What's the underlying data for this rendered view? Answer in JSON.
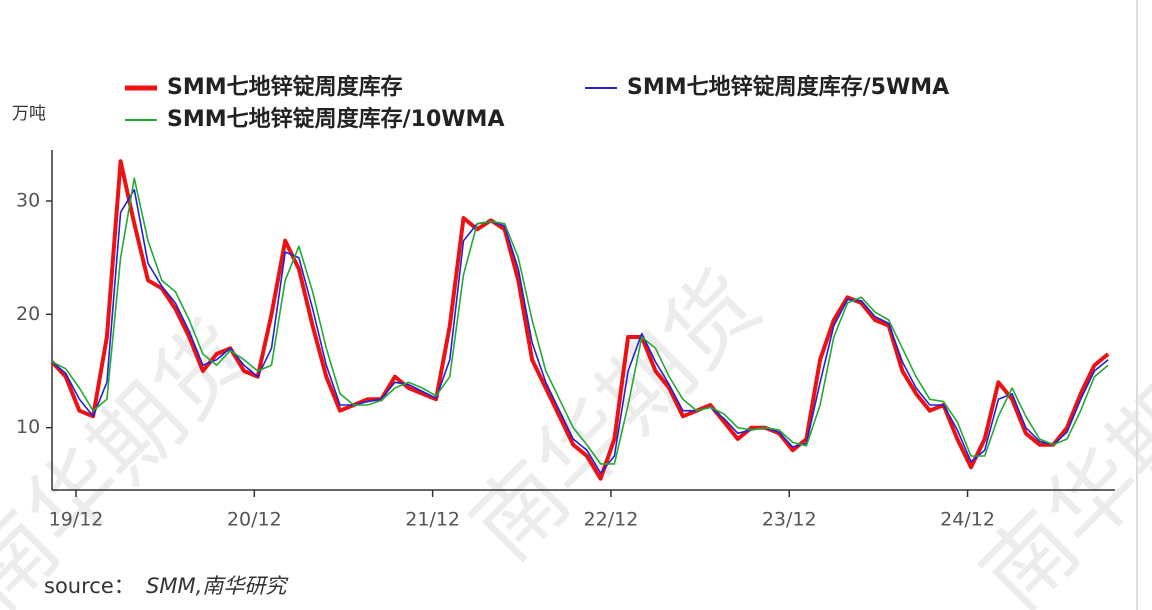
{
  "chart_data": {
    "type": "line",
    "y_unit": "万吨",
    "source_label": "source：",
    "source": "SMM,南华研究",
    "watermark": "南华期货",
    "x": [
      0,
      4,
      8,
      12,
      16,
      20,
      24,
      28,
      32,
      36,
      40,
      44,
      48,
      52,
      56,
      60,
      64,
      68,
      72,
      76,
      80,
      84,
      88,
      92,
      96,
      100,
      104,
      108,
      112,
      116,
      120,
      124,
      128,
      132,
      136,
      140,
      144,
      148,
      152,
      156,
      160,
      164,
      168,
      172,
      176,
      180,
      184,
      188,
      192,
      196,
      200,
      204,
      208,
      212,
      216,
      220,
      224,
      228,
      232,
      236,
      240,
      244,
      248,
      252,
      256,
      260,
      264,
      268,
      272,
      276,
      280,
      284,
      288,
      292,
      296,
      300,
      304,
      308
    ],
    "xlim": [
      0,
      310
    ],
    "xticks": [
      {
        "value": 7,
        "label": "19/12"
      },
      {
        "value": 59,
        "label": "20/12"
      },
      {
        "value": 111,
        "label": "21/12"
      },
      {
        "value": 163,
        "label": "22/12"
      },
      {
        "value": 215,
        "label": "23/12"
      },
      {
        "value": 267,
        "label": "24/12"
      }
    ],
    "ylim": [
      4.5,
      34.5
    ],
    "yticks": [
      10,
      20,
      30
    ],
    "grid": false,
    "series": [
      {
        "name": "SMM七地锌锭周度库存",
        "color": "#ee1111",
        "width": 4,
        "values": [
          15.8,
          14.5,
          11.5,
          11.0,
          18,
          33.5,
          28,
          23,
          22.3,
          20.5,
          18,
          15,
          16.5,
          17,
          15,
          14.5,
          20,
          26.5,
          24,
          19,
          14.5,
          11.5,
          12,
          12.5,
          12.5,
          14.5,
          13.5,
          13,
          12.5,
          19,
          28.5,
          27.5,
          28.3,
          27.5,
          23,
          16,
          13.5,
          11,
          8.5,
          7.5,
          5.5,
          9,
          18,
          18,
          15,
          13.5,
          11,
          11.5,
          12,
          10.5,
          9,
          10,
          10,
          9.5,
          8,
          9,
          16,
          19.5,
          21.5,
          21,
          19.5,
          19,
          15,
          13,
          11.5,
          12,
          9,
          6.5,
          9,
          14,
          12.5,
          9.5,
          8.5,
          8.5,
          10,
          13,
          15.5,
          16.5
        ]
      },
      {
        "name": "SMM七地锌锭周度库存/5WMA",
        "color": "#2222dd",
        "width": 1.6,
        "values": [
          15.8,
          14.8,
          12.5,
          11.0,
          14,
          29,
          31,
          24.5,
          22.5,
          21,
          18.5,
          15.5,
          16,
          17,
          15.5,
          14.5,
          17,
          25.5,
          25,
          20.5,
          15.5,
          12,
          12,
          12.3,
          12.5,
          14,
          13.8,
          13.2,
          12.6,
          16,
          26.5,
          28,
          28.2,
          27.8,
          24,
          17.5,
          14,
          11.5,
          9,
          8,
          6,
          7.5,
          15,
          18.3,
          15.8,
          13.8,
          11.5,
          11.5,
          11.8,
          10.8,
          9.5,
          9.8,
          10,
          9.6,
          8.3,
          8.6,
          14,
          19,
          21.3,
          21.2,
          19.8,
          19.2,
          15.8,
          13.5,
          12,
          12,
          9.8,
          7,
          8,
          12.5,
          13,
          10,
          8.8,
          8.5,
          9.6,
          12.5,
          15,
          16
        ]
      },
      {
        "name": "SMM七地锌锭周度库存/10WMA",
        "color": "#22aa33",
        "width": 1.6,
        "values": [
          15.8,
          15.2,
          13.5,
          11.5,
          12.5,
          25,
          32,
          26.5,
          23,
          22,
          19.5,
          16.5,
          15.5,
          16.8,
          16,
          15,
          15.5,
          23,
          26,
          22,
          17,
          13,
          12,
          12,
          12.4,
          13.5,
          14,
          13.5,
          12.8,
          14.5,
          23.5,
          28,
          28.2,
          28,
          25,
          19.5,
          15,
          12.5,
          10,
          8.5,
          6.8,
          6.8,
          12,
          18,
          17,
          14.5,
          12.5,
          11.5,
          11.8,
          11.2,
          10,
          9.8,
          10,
          9.8,
          8.7,
          8.4,
          12,
          18,
          21,
          21.5,
          20.2,
          19.5,
          17,
          14.5,
          12.5,
          12.3,
          10.5,
          7.5,
          7.5,
          11,
          13.5,
          11,
          9,
          8.5,
          9,
          11.5,
          14.5,
          15.5
        ]
      }
    ]
  }
}
